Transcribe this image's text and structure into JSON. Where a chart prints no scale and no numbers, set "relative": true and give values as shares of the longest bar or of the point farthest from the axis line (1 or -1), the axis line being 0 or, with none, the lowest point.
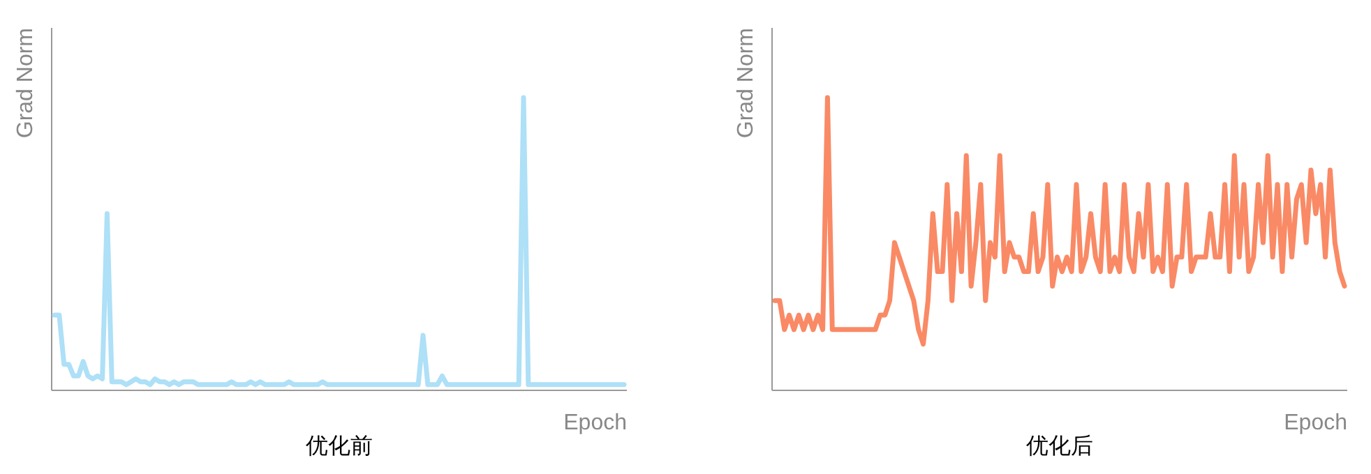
{
  "chart_data": [
    {
      "type": "line",
      "title": "优化前",
      "xlabel": "Epoch",
      "ylabel": "Grad Norm",
      "relative": true,
      "categories": [
        null,
        null,
        null,
        null,
        null,
        null,
        null,
        null,
        null,
        null,
        null,
        null,
        null,
        null,
        null,
        null,
        null,
        null,
        null,
        null,
        null,
        null,
        null,
        null,
        null,
        null,
        null,
        null,
        null,
        null,
        null,
        null,
        null,
        null,
        null,
        null,
        null,
        null,
        null,
        null,
        null,
        null,
        null,
        null,
        null,
        null,
        null,
        null,
        null,
        null,
        null,
        null,
        null,
        null,
        null,
        null,
        null,
        null,
        null,
        null,
        null,
        null,
        null,
        null,
        null,
        null,
        null,
        null,
        null,
        null,
        null,
        null,
        null,
        null,
        null,
        null,
        null,
        null,
        null,
        null,
        null,
        null,
        null,
        null,
        null,
        null,
        null,
        null,
        null,
        null,
        null,
        null,
        null,
        null,
        null,
        null,
        null,
        null,
        null,
        null,
        null,
        null,
        null,
        null,
        null,
        null,
        null,
        null,
        null,
        null,
        null,
        null,
        null,
        null,
        null,
        null,
        null,
        null,
        null,
        null
      ],
      "series": [
        {
          "color": "#aee0f7",
          "values": [
            0.25,
            0.25,
            0.08,
            0.08,
            0.04,
            0.04,
            0.09,
            0.04,
            0.03,
            0.04,
            0.03,
            0.6,
            0.02,
            0.02,
            0.02,
            0.01,
            0.02,
            0.03,
            0.02,
            0.02,
            0.01,
            0.03,
            0.02,
            0.02,
            0.01,
            0.02,
            0.01,
            0.02,
            0.02,
            0.02,
            0.01,
            0.01,
            0.01,
            0.01,
            0.01,
            0.01,
            0.01,
            0.02,
            0.01,
            0.01,
            0.01,
            0.02,
            0.01,
            0.02,
            0.01,
            0.01,
            0.01,
            0.01,
            0.01,
            0.02,
            0.01,
            0.01,
            0.01,
            0.01,
            0.01,
            0.01,
            0.02,
            0.01,
            0.01,
            0.01,
            0.01,
            0.01,
            0.01,
            0.01,
            0.01,
            0.01,
            0.01,
            0.01,
            0.01,
            0.01,
            0.01,
            0.01,
            0.01,
            0.01,
            0.01,
            0.01,
            0.01,
            0.18,
            0.01,
            0.01,
            0.01,
            0.04,
            0.01,
            0.01,
            0.01,
            0.01,
            0.01,
            0.01,
            0.01,
            0.01,
            0.01,
            0.01,
            0.01,
            0.01,
            0.01,
            0.01,
            0.01,
            0.01,
            1,
            0.01,
            0.01,
            0.01,
            0.01,
            0.01,
            0.01,
            0.01,
            0.01,
            0.01,
            0.01,
            0.01,
            0.01,
            0.01,
            0.01,
            0.01,
            0.01,
            0.01,
            0.01,
            0.01,
            0.01,
            0.01
          ]
        }
      ]
    },
    {
      "type": "line",
      "title": "优化后",
      "xlabel": "Epoch",
      "ylabel": "Grad Norm",
      "relative": true,
      "categories": [
        null,
        null,
        null,
        null,
        null,
        null,
        null,
        null,
        null,
        null,
        null,
        null,
        null,
        null,
        null,
        null,
        null,
        null,
        null,
        null,
        null,
        null,
        null,
        null,
        null,
        null,
        null,
        null,
        null,
        null,
        null,
        null,
        null,
        null,
        null,
        null,
        null,
        null,
        null,
        null,
        null,
        null,
        null,
        null,
        null,
        null,
        null,
        null,
        null,
        null,
        null,
        null,
        null,
        null,
        null,
        null,
        null,
        null,
        null,
        null,
        null,
        null,
        null,
        null,
        null,
        null,
        null,
        null,
        null,
        null,
        null,
        null,
        null,
        null,
        null,
        null,
        null,
        null,
        null,
        null,
        null,
        null,
        null,
        null,
        null,
        null,
        null,
        null,
        null,
        null,
        null,
        null,
        null,
        null,
        null,
        null,
        null,
        null,
        null,
        null,
        null,
        null,
        null,
        null,
        null,
        null,
        null,
        null,
        null,
        null,
        null,
        null,
        null,
        null,
        null,
        null,
        null,
        null,
        null,
        null
      ],
      "series": [
        {
          "color": "#f98a65",
          "values": [
            0.3,
            0.3,
            0.2,
            0.25,
            0.2,
            0.25,
            0.2,
            0.25,
            0.2,
            0.25,
            0.2,
            1,
            0.2,
            0.2,
            0.2,
            0.2,
            0.2,
            0.2,
            0.2,
            0.2,
            0.2,
            0.2,
            0.25,
            0.25,
            0.3,
            0.5,
            0.45,
            0.4,
            0.35,
            0.3,
            0.2,
            0.15,
            0.3,
            0.6,
            0.4,
            0.4,
            0.7,
            0.3,
            0.6,
            0.4,
            0.8,
            0.35,
            0.5,
            0.7,
            0.3,
            0.5,
            0.45,
            0.8,
            0.4,
            0.5,
            0.45,
            0.45,
            0.4,
            0.4,
            0.6,
            0.4,
            0.45,
            0.7,
            0.35,
            0.45,
            0.4,
            0.45,
            0.4,
            0.7,
            0.4,
            0.45,
            0.6,
            0.45,
            0.4,
            0.7,
            0.4,
            0.45,
            0.4,
            0.7,
            0.45,
            0.4,
            0.6,
            0.45,
            0.7,
            0.4,
            0.45,
            0.4,
            0.7,
            0.35,
            0.45,
            0.45,
            0.7,
            0.4,
            0.45,
            0.45,
            0.45,
            0.6,
            0.45,
            0.45,
            0.7,
            0.4,
            0.8,
            0.45,
            0.7,
            0.4,
            0.45,
            0.7,
            0.5,
            0.8,
            0.45,
            0.7,
            0.4,
            0.7,
            0.45,
            0.65,
            0.7,
            0.5,
            0.75,
            0.6,
            0.7,
            0.45,
            0.75,
            0.5,
            0.4,
            0.35
          ]
        }
      ]
    }
  ]
}
